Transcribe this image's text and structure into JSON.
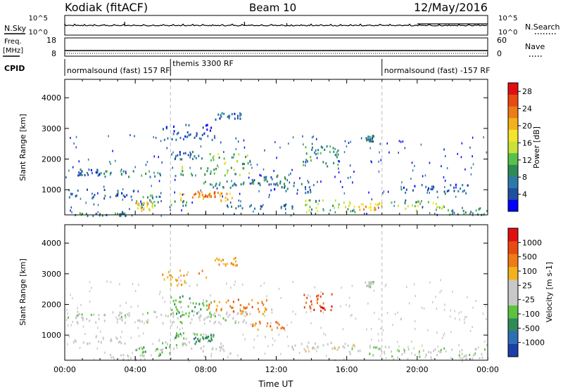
{
  "header": {
    "station": "Kodiak (fitACF)",
    "beam": "Beam 10",
    "date": "12/May/2016"
  },
  "status_panels": {
    "nsky_label": "N.Sky",
    "nsearch_label": "N.Search",
    "freq_label": "Freq.",
    "freq_unit": "[MHz]",
    "nave_label": "Nave",
    "cpid_label": "CPID",
    "nsky_ticks": [
      "10^5",
      "10^0"
    ],
    "nsearch_ticks": [
      "10^5",
      "10^0"
    ],
    "freq_ticks": [
      "18",
      "8"
    ],
    "nave_ticks": [
      "60",
      "0"
    ]
  },
  "cpid_segments": [
    {
      "label": "normalsound (fast) 157 RF",
      "start_hour": 0
    },
    {
      "label": "themis 3300 RF",
      "start_hour": 6
    },
    {
      "label": "normalsound (fast) -157 RF",
      "start_hour": 18
    }
  ],
  "chart_data": [
    {
      "type": "heatmap",
      "panel": "power",
      "title": "",
      "xlabel": "Time UT",
      "ylabel": "Slant Range [km]",
      "x_ticks": [
        "00:00",
        "04:00",
        "08:00",
        "12:00",
        "16:00",
        "20:00",
        "00:00"
      ],
      "y_ticks": [
        1000,
        2000,
        3000,
        4000
      ],
      "xlim": [
        0,
        24
      ],
      "ylim": [
        180,
        4600
      ],
      "colorbar": {
        "label": "Power [dB]",
        "ticks": [
          "28",
          "24",
          "20",
          "16",
          "12",
          "8",
          "4"
        ],
        "range": [
          0,
          30
        ],
        "colors": [
          "#0000ff",
          "#1f4fa0",
          "#2d7aa8",
          "#2e8b57",
          "#55c24a",
          "#c9e13a",
          "#f5e52a",
          "#f2b21e",
          "#ee7a18",
          "#e84a12",
          "#e01010"
        ]
      },
      "regions": [
        {
          "x": [
            0.1,
            2.0
          ],
          "y": [
            1480,
            1700
          ],
          "level": 6
        },
        {
          "x": [
            2.0,
            6.5
          ],
          "y": [
            1450,
            1650
          ],
          "level": 9
        },
        {
          "x": [
            6.5,
            10.5
          ],
          "y": [
            1500,
            1800
          ],
          "level": 12
        },
        {
          "x": [
            8.0,
            10.5
          ],
          "y": [
            1850,
            2200
          ],
          "level": 13
        },
        {
          "x": [
            6.5,
            9.5
          ],
          "y": [
            650,
            1000
          ],
          "level": 20
        },
        {
          "x": [
            7.2,
            8.6
          ],
          "y": [
            750,
            950
          ],
          "level": 24
        },
        {
          "x": [
            4.0,
            7.0
          ],
          "y": [
            500,
            850
          ],
          "level": 10
        },
        {
          "x": [
            4.0,
            5.0
          ],
          "y": [
            350,
            650
          ],
          "level": 18
        },
        {
          "x": [
            0.2,
            4.0
          ],
          "y": [
            750,
            1050
          ],
          "level": 5
        },
        {
          "x": [
            7.8,
            11.0
          ],
          "y": [
            1100,
            1300
          ],
          "level": 9
        },
        {
          "x": [
            8.5,
            10.0
          ],
          "y": [
            3300,
            3550
          ],
          "level": 5
        },
        {
          "x": [
            5.5,
            8.5
          ],
          "y": [
            2650,
            3150
          ],
          "level": 5
        },
        {
          "x": [
            6.0,
            8.0
          ],
          "y": [
            2000,
            2300
          ],
          "level": 6
        },
        {
          "x": [
            10.5,
            12.5
          ],
          "y": [
            1200,
            1500
          ],
          "level": 8
        },
        {
          "x": [
            13.5,
            15.5
          ],
          "y": [
            1800,
            2450
          ],
          "level": 10
        },
        {
          "x": [
            11.8,
            14.0
          ],
          "y": [
            900,
            1300
          ],
          "level": 6
        },
        {
          "x": [
            13.5,
            16.5
          ],
          "y": [
            300,
            700
          ],
          "level": 14
        },
        {
          "x": [
            16.5,
            18.0
          ],
          "y": [
            350,
            600
          ],
          "level": 20
        },
        {
          "x": [
            18.5,
            21.5
          ],
          "y": [
            350,
            650
          ],
          "level": 13
        },
        {
          "x": [
            21.5,
            24.0
          ],
          "y": [
            200,
            450
          ],
          "level": 9
        },
        {
          "x": [
            17.0,
            17.5
          ],
          "y": [
            2600,
            2800
          ],
          "level": 6
        },
        {
          "x": [
            19.0,
            23.0
          ],
          "y": [
            900,
            1200
          ],
          "level": 5
        },
        {
          "x": [
            0.5,
            3.5
          ],
          "y": [
            180,
            280
          ],
          "level": 8
        },
        {
          "x": [
            9.0,
            13.0
          ],
          "y": [
            400,
            550
          ],
          "level": 6
        }
      ]
    },
    {
      "type": "heatmap",
      "panel": "velocity",
      "title": "",
      "xlabel": "Time UT",
      "ylabel": "Slant Range [km]",
      "x_ticks": [
        "00:00",
        "04:00",
        "08:00",
        "12:00",
        "16:00",
        "20:00",
        "00:00"
      ],
      "y_ticks": [
        1000,
        2000,
        3000,
        4000
      ],
      "xlim": [
        0,
        24
      ],
      "ylim": [
        180,
        4600
      ],
      "colorbar": {
        "label": "Velocity [m s-1]",
        "ticks": [
          "1000",
          "500",
          "100",
          "25",
          "-25",
          "-100",
          "-500",
          "-1000"
        ],
        "colors": [
          "#1a3fa8",
          "#2f6db5",
          "#2e8b57",
          "#5cc33f",
          "#c8c8c8",
          "#c8c8c8",
          "#f2b21e",
          "#ee7a18",
          "#e84a12",
          "#e01010"
        ]
      },
      "regions": [
        {
          "x": [
            0.1,
            10.5
          ],
          "y": [
            1400,
            1800
          ],
          "vel_class": 4
        },
        {
          "x": [
            8.0,
            11.5
          ],
          "y": [
            1700,
            2200
          ],
          "vel_class": 7
        },
        {
          "x": [
            6.0,
            8.5
          ],
          "y": [
            1600,
            2300
          ],
          "vel_class": 3
        },
        {
          "x": [
            6.0,
            8.0
          ],
          "y": [
            900,
            1100
          ],
          "vel_class": 3
        },
        {
          "x": [
            7.3,
            8.5
          ],
          "y": [
            750,
            1050
          ],
          "vel_class": 2
        },
        {
          "x": [
            4.0,
            6.0
          ],
          "y": [
            350,
            650
          ],
          "vel_class": 3
        },
        {
          "x": [
            5.0,
            9.0
          ],
          "y": [
            500,
            800
          ],
          "vel_class": 4
        },
        {
          "x": [
            8.5,
            9.8
          ],
          "y": [
            3300,
            3550
          ],
          "vel_class": 6
        },
        {
          "x": [
            5.5,
            8.0
          ],
          "y": [
            2650,
            3150
          ],
          "vel_class": 6
        },
        {
          "x": [
            10.5,
            12.5
          ],
          "y": [
            1200,
            1500
          ],
          "vel_class": 7
        },
        {
          "x": [
            13.5,
            15.3
          ],
          "y": [
            1800,
            2400
          ],
          "vel_class": 8
        },
        {
          "x": [
            12.5,
            16.5
          ],
          "y": [
            500,
            800
          ],
          "vel_class": 5
        },
        {
          "x": [
            16.0,
            18.5
          ],
          "y": [
            350,
            650
          ],
          "vel_class": 4
        },
        {
          "x": [
            18.5,
            24.0
          ],
          "y": [
            250,
            600
          ],
          "vel_class": 4
        },
        {
          "x": [
            0.2,
            3.5
          ],
          "y": [
            750,
            1000
          ],
          "vel_class": 4
        },
        {
          "x": [
            17.0,
            17.5
          ],
          "y": [
            2600,
            2800
          ],
          "vel_class": 4
        },
        {
          "x": [
            2.5,
            4.5
          ],
          "y": [
            200,
            400
          ],
          "vel_class": 5
        }
      ]
    }
  ]
}
